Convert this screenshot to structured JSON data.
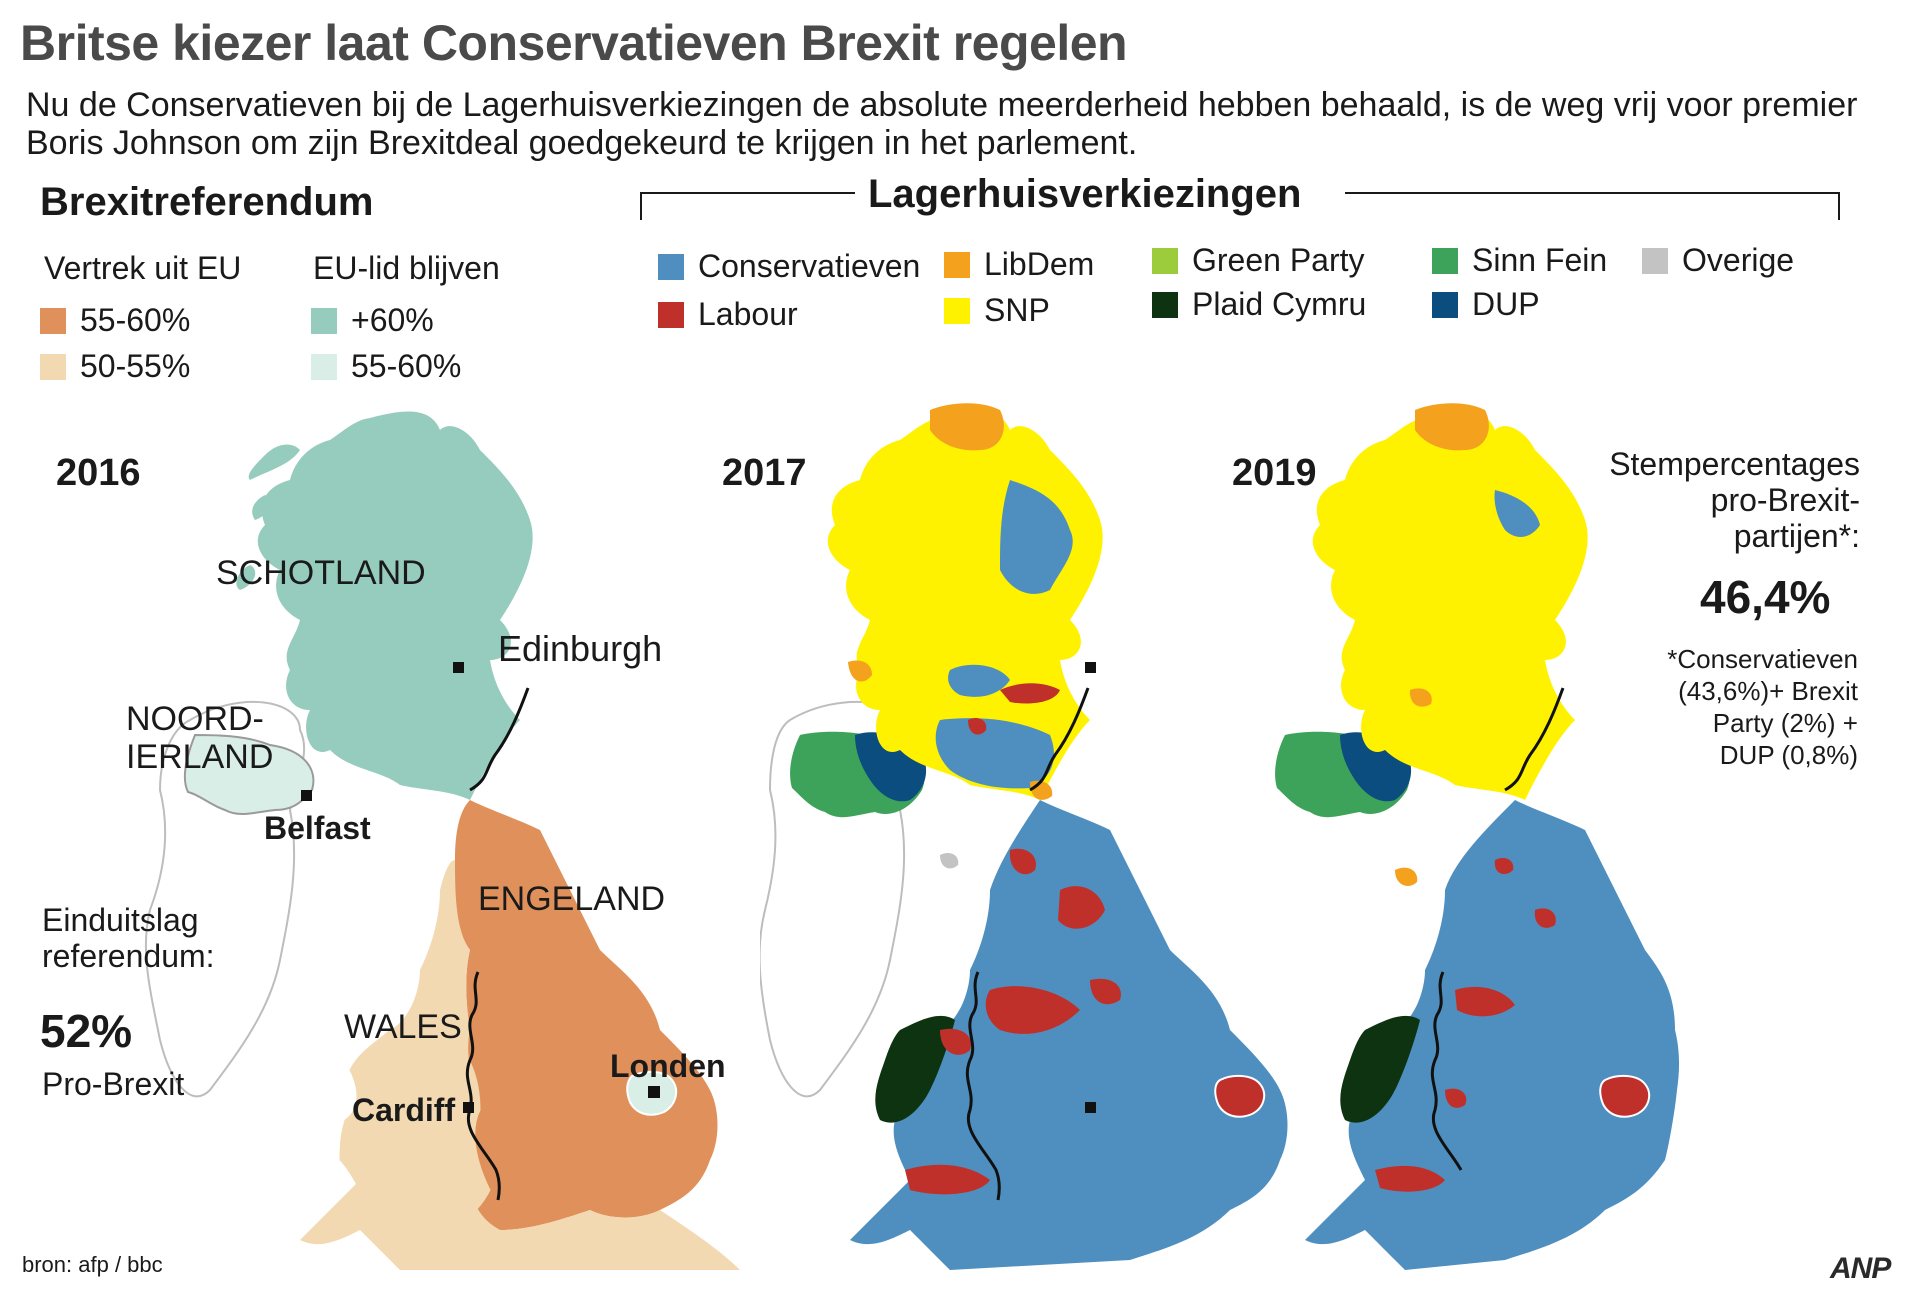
{
  "title": "Britse kiezer laat Conservatieven Brexit regelen",
  "intro": "Nu de Conservatieven bij de Lagerhuisverkiezingen de absolute meerderheid hebben behaald, is de weg vrij voor premier Boris Johnson om zijn Brexitdeal goedgekeurd te krijgen in het parlement.",
  "referendum": {
    "heading": "Brexitreferendum",
    "leave_header": "Vertrek uit EU",
    "remain_header": "EU-lid blijven",
    "leave_items": [
      {
        "label": "55-60%",
        "color": "#e0915b"
      },
      {
        "label": "50-55%",
        "color": "#f2d9b1"
      }
    ],
    "remain_items": [
      {
        "label": "+60%",
        "color": "#96ccbd"
      },
      {
        "label": "55-60%",
        "color": "#d8eee7"
      }
    ],
    "year": "2016",
    "labels": {
      "scotland": "SCHOTLAND",
      "edinburgh": "Edinburgh",
      "ni_line1": "NOORD-",
      "ni_line2": "IERLAND",
      "belfast": "Belfast",
      "england": "ENGELAND",
      "wales": "WALES",
      "cardiff": "Cardiff",
      "london": "Londen"
    },
    "result_line1": "Einduitslag",
    "result_line2": "referendum:",
    "result_value": "52%",
    "result_caption": "Pro-Brexit"
  },
  "elections": {
    "heading": "Lagerhuisverkiezingen",
    "parties": [
      {
        "name": "Conservatieven",
        "color": "#4f8fbf"
      },
      {
        "name": "Labour",
        "color": "#c0302b"
      },
      {
        "name": "LibDem",
        "color": "#f4a21d"
      },
      {
        "name": "SNP",
        "color": "#fff200"
      },
      {
        "name": "Green Party",
        "color": "#9ccb3b"
      },
      {
        "name": "Plaid Cymru",
        "color": "#0d3311"
      },
      {
        "name": "Sinn Fein",
        "color": "#3ea35a"
      },
      {
        "name": "DUP",
        "color": "#0b4d7e"
      },
      {
        "name": "Overige",
        "color": "#c3c3c3"
      }
    ],
    "year_2017": "2017",
    "year_2019": "2019"
  },
  "side": {
    "line1": "Stempercentages",
    "line2": "pro-Brexit-",
    "line3": "partijen*:",
    "value": "46,4%",
    "note_line1": "*Conservatieven",
    "note_line2": "(43,6%)+ Brexit",
    "note_line3": "Party (2%) +",
    "note_line4": "DUP (0,8%)"
  },
  "source": "bron: afp / bbc",
  "logo": "ANP"
}
